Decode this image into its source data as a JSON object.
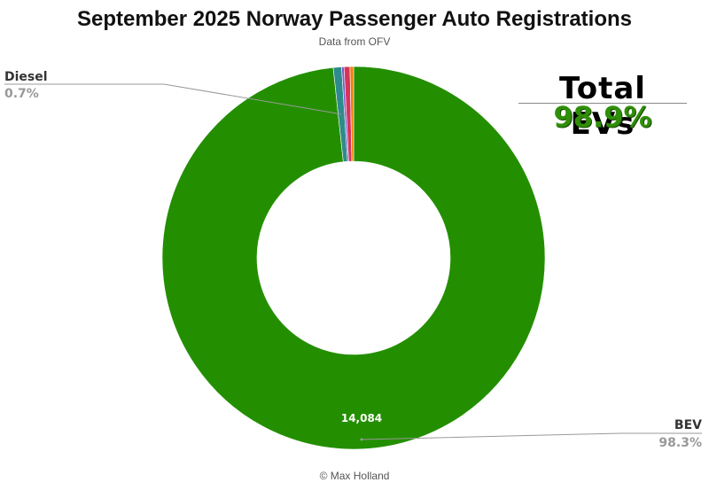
{
  "header": {
    "title": "September 2025 Norway Passenger Auto Registrations",
    "subtitle": "Data from OFV"
  },
  "callout": {
    "heading": "Total EVs",
    "value": "98.9%",
    "color": "#2f8f08"
  },
  "footer": {
    "credit": "© Max Holland"
  },
  "chart_data": {
    "type": "pie",
    "variant": "donut",
    "slices": [
      {
        "name": "BEV",
        "percent": 98.3,
        "value": 14084,
        "value_label": "14,084",
        "color": "#238f00",
        "legend_label": "BEV",
        "legend_value": "98.3%"
      },
      {
        "name": "Diesel",
        "percent": 0.7,
        "color": "#2e8b8b",
        "legend_label": "Diesel",
        "legend_value": "0.7%"
      },
      {
        "name": "",
        "percent": 0.2,
        "color": "#7b57c9"
      },
      {
        "name": "",
        "percent": 0.5,
        "color": "#d6345b"
      },
      {
        "name": "",
        "percent": 0.3,
        "color": "#f07f0c"
      }
    ]
  }
}
